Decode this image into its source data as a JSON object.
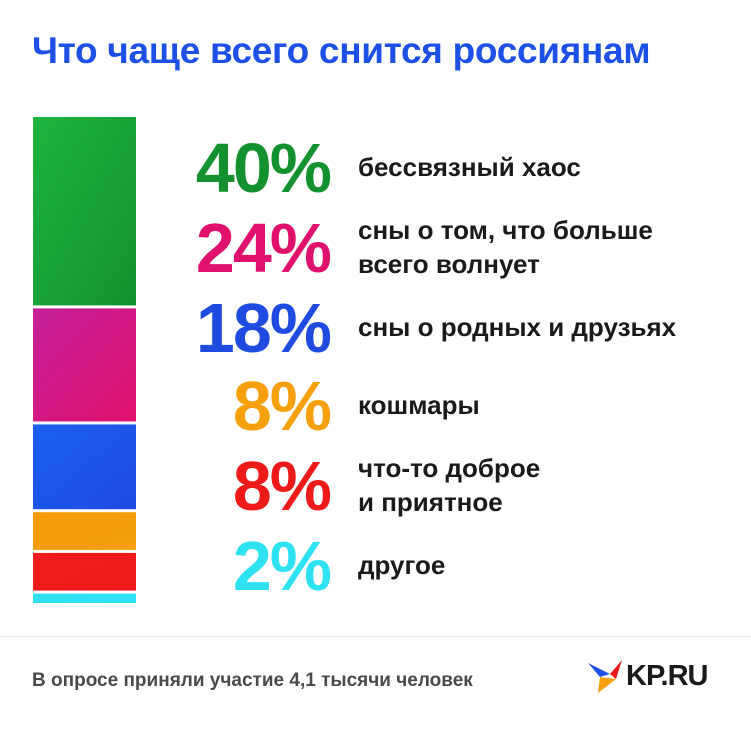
{
  "title": "Что чаще всего снится россиянам",
  "chart_data": {
    "type": "bar",
    "orientation": "stacked-vertical",
    "categories": [
      "бессвязный хаос",
      "сны о том, что больше\nвсего волнует",
      "сны о родных и друзьях",
      "кошмары",
      "что-то доброе\nи приятное",
      "другое"
    ],
    "values": [
      40,
      24,
      18,
      8,
      8,
      2
    ],
    "labels": [
      "40%",
      "24%",
      "18%",
      "8%",
      "8%",
      "2%"
    ],
    "colors": [
      "#13912f",
      "#e0116c",
      "#1f4be0",
      "#f5a00c",
      "#ee1a1a",
      "#2ee2f2"
    ],
    "bar_colors": [
      "#1fb33f",
      "#c4209a",
      "#1a5ef0",
      "#f59a0a",
      "#f01d1d",
      "#33e0f0"
    ]
  },
  "footer": "В опросе приняли участие 4,1 тысячи человек",
  "logo": {
    "text": "KP.RU",
    "icon": "kp-bird-icon"
  }
}
